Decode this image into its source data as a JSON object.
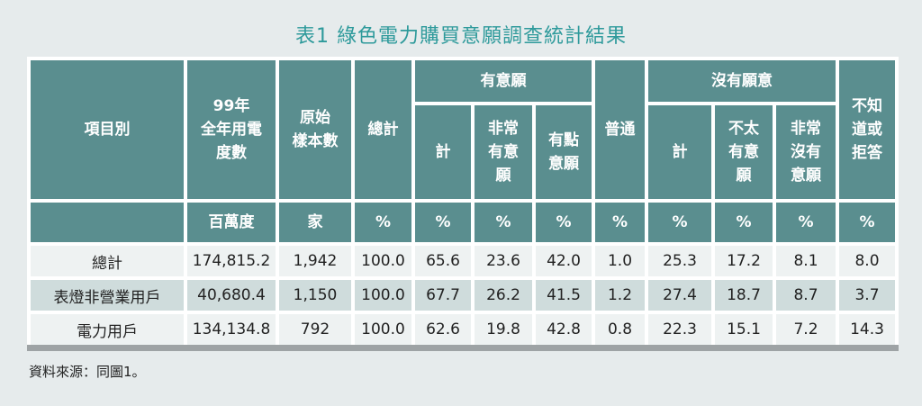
{
  "title": "表1  綠色電力購買意願調查統計結果",
  "headers": {
    "item": "項目別",
    "usage": "99年 全年用電 度數",
    "samples": "原始 樣本數",
    "total": "總計",
    "willing_group": "有意願",
    "willing_sub": [
      "計",
      "非常 有意 願",
      "有點 意願"
    ],
    "neutral": "普通",
    "unwilling_group": "沒有願意",
    "unwilling_sub": [
      "計",
      "不太 有意 願",
      "非常 沒有 意願"
    ],
    "unknown": "不知 道或 拒答"
  },
  "units": [
    "百萬度",
    "家",
    "%",
    "%",
    "%",
    "%",
    "%",
    "%",
    "%",
    "%",
    "%"
  ],
  "rows": [
    {
      "label": "總計",
      "values": [
        "174,815.2",
        "1,942",
        "100.0",
        "65.6",
        "23.6",
        "42.0",
        "1.0",
        "25.3",
        "17.2",
        "8.1",
        "8.0"
      ]
    },
    {
      "label": "表燈非營業用戶",
      "values": [
        "40,680.4",
        "1,150",
        "100.0",
        "67.7",
        "26.2",
        "41.5",
        "1.2",
        "27.4",
        "18.7",
        "8.7",
        "3.7"
      ]
    },
    {
      "label": "電力用戶",
      "values": [
        "134,134.8",
        "792",
        "100.0",
        "62.6",
        "19.8",
        "42.8",
        "0.8",
        "22.3",
        "15.1",
        "7.2",
        "14.3"
      ]
    }
  ],
  "source": "資料來源：同圖1。",
  "colors": {
    "header": "#5a8e8f",
    "title": "#2e9a9b",
    "row_alt": "#cfdcdc"
  }
}
